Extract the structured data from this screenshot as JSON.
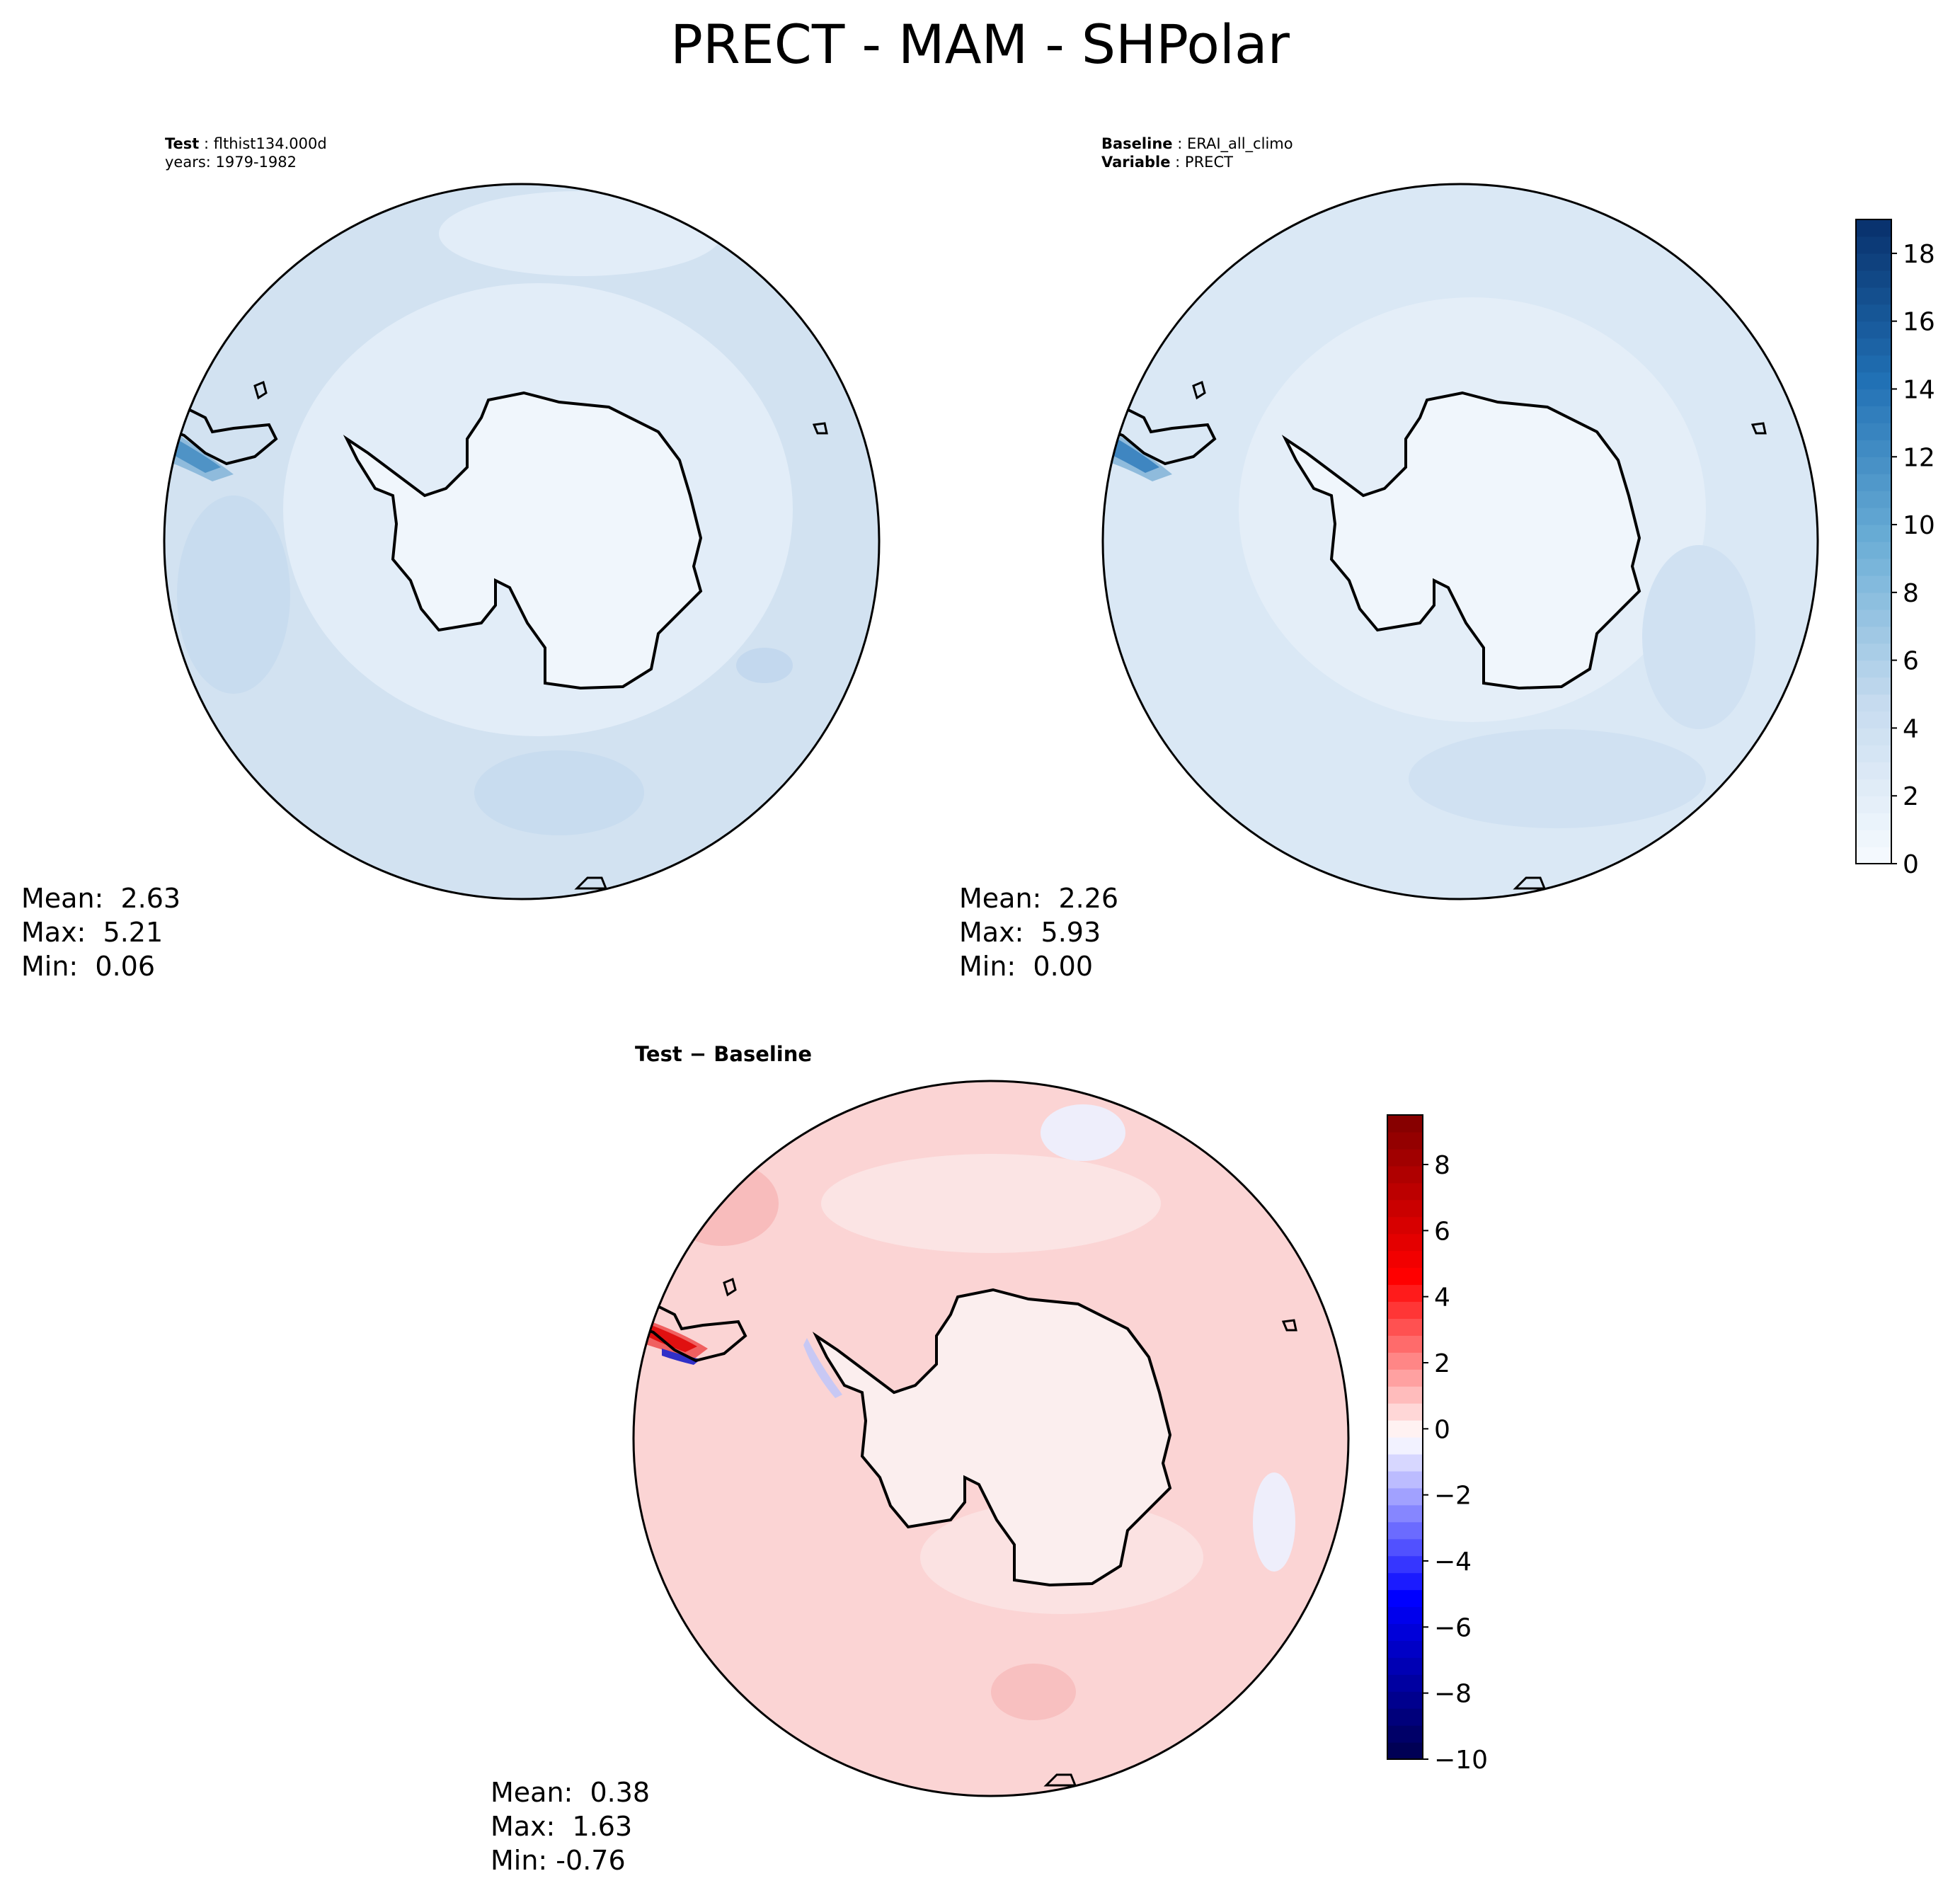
{
  "title": "PRECT - MAM - SHPolar",
  "panels": {
    "test": {
      "label_key": "Test",
      "label_value": "flthist134.000d",
      "years": "years: 1979-1982",
      "stats": {
        "mean": "Mean:  2.63",
        "max": "Max:  5.21",
        "min": "Min:  0.06"
      }
    },
    "baseline": {
      "label_key": "Baseline",
      "label_value": "ERAI_all_climo",
      "variable_key": "Variable",
      "variable_value": "PRECT",
      "stats": {
        "mean": "Mean:  2.26",
        "max": "Max:  5.93",
        "min": "Min:  0.00"
      }
    },
    "diff": {
      "label_a": "Test",
      "label_op": "−",
      "label_b": "Baseline",
      "stats": {
        "mean": "Mean:  0.38",
        "max": "Max:  1.63",
        "min": "Min: -0.76"
      }
    }
  },
  "colors": {
    "ocean_test": "#d2e2f1",
    "ocean_base": "#dae8f5",
    "continent_blue": "#f0f6fc",
    "diff_ocean": "#fbd4d4",
    "diff_continent": "#fbeeee",
    "coast": "#000000"
  },
  "chart_data": [
    {
      "type": "heatmap",
      "name": "test",
      "title": "Test: flthist134.000d",
      "variable": "PRECT",
      "season": "MAM",
      "region": "SHPolar",
      "mean": 2.63,
      "max": 5.21,
      "min": 0.06,
      "colormap": "Blues",
      "clim": [
        0,
        19
      ]
    },
    {
      "type": "heatmap",
      "name": "baseline",
      "title": "Baseline: ERAI_all_climo",
      "variable": "PRECT",
      "mean": 2.26,
      "max": 5.93,
      "min": 0.0,
      "colormap": "Blues",
      "clim": [
        0,
        19
      ],
      "colorbar": {
        "ticks": [
          0,
          2,
          4,
          6,
          8,
          10,
          12,
          14,
          16,
          18
        ],
        "range": [
          0,
          19
        ]
      }
    },
    {
      "type": "heatmap",
      "name": "difference",
      "title": "Test − Baseline",
      "mean": 0.38,
      "max": 1.63,
      "min": -0.76,
      "colormap": "seismic",
      "clim": [
        -10,
        9.5
      ],
      "colorbar": {
        "ticks": [
          -10,
          -8,
          -6,
          -4,
          -2,
          0,
          2,
          4,
          6,
          8
        ],
        "range": [
          -10,
          9.5
        ]
      }
    }
  ]
}
